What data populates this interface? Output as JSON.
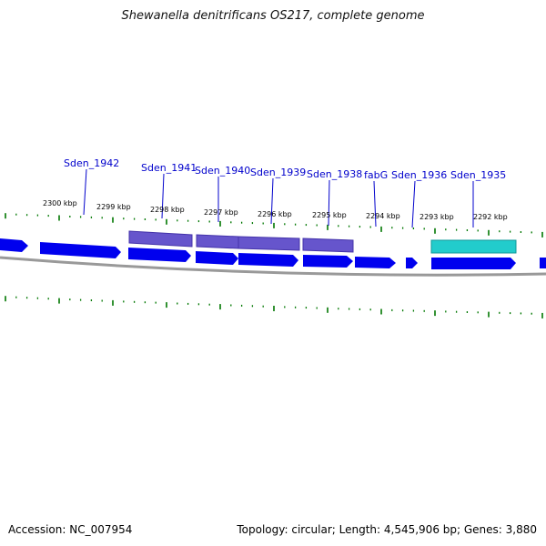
{
  "title": "Shewanella denitrificans OS217, complete genome",
  "accession": "Accession: NC_007954",
  "summary": "Topology: circular; Length: 4,545,906 bp; Genes: 3,880",
  "colors": {
    "cds": "#0000ee",
    "selected": "#6655cc",
    "rna": "#22cccc",
    "backbone": "#888888",
    "ticks": "#007700",
    "label": "#0000cc"
  },
  "kbp_labels": [
    "2300 kbp",
    "2299 kbp",
    "2298 kbp",
    "2297 kbp",
    "2296 kbp",
    "2295 kbp",
    "2294 kbp",
    "2293 kbp",
    "2292 kbp"
  ],
  "gene_labels": [
    "Sden_1942",
    "Sden_1941",
    "Sden_1940",
    "Sden_1939",
    "Sden_1938",
    "fabG",
    "Sden_1936",
    "Sden_1935"
  ]
}
